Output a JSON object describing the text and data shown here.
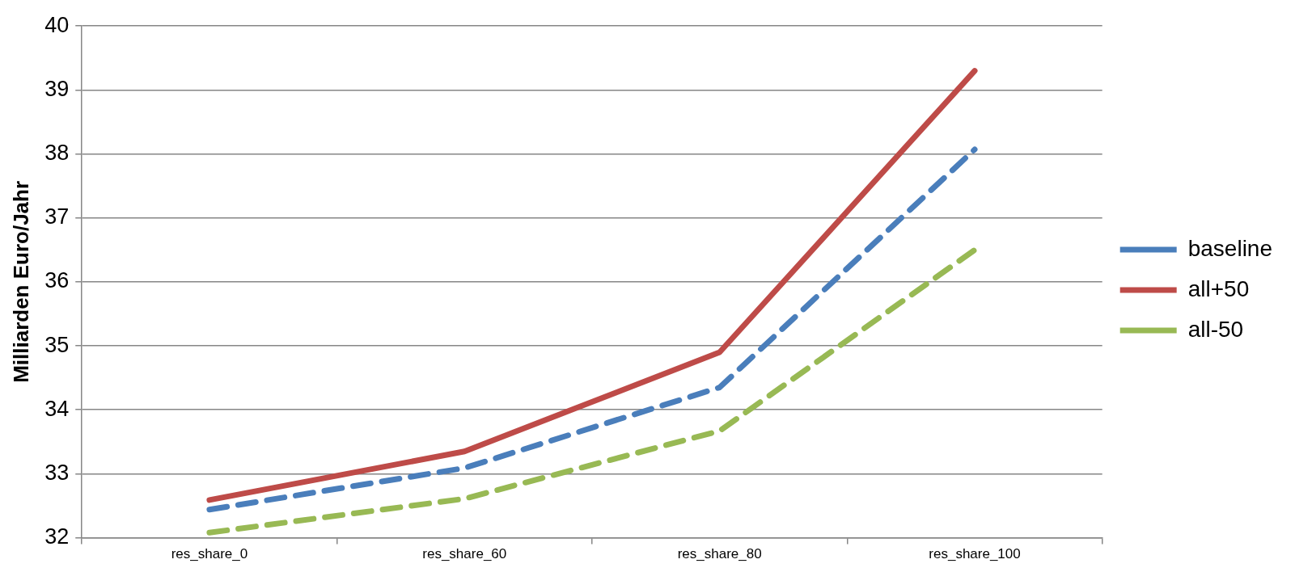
{
  "chart_data": {
    "type": "line",
    "ylabel": "Milliarden Euro/Jahr",
    "categories": [
      "res_share_0",
      "res_share_60",
      "res_share_80",
      "res_share_100"
    ],
    "series": [
      {
        "name": "baseline",
        "color": "#4a7ebb",
        "line_style": "dashed",
        "values": [
          32.44,
          33.09,
          34.35,
          38.07
        ]
      },
      {
        "name": "all+50",
        "color": "#be4b48",
        "line_style": "solid",
        "values": [
          32.59,
          33.35,
          34.9,
          39.3
        ]
      },
      {
        "name": "all-50",
        "color": "#98b954",
        "line_style": "dashed",
        "values": [
          32.08,
          32.61,
          33.67,
          36.5
        ]
      }
    ],
    "ylim": [
      32,
      40
    ],
    "yticks": [
      32,
      33,
      34,
      35,
      36,
      37,
      38,
      39,
      40
    ],
    "grid": "y",
    "legend": "right",
    "marker": "none"
  }
}
